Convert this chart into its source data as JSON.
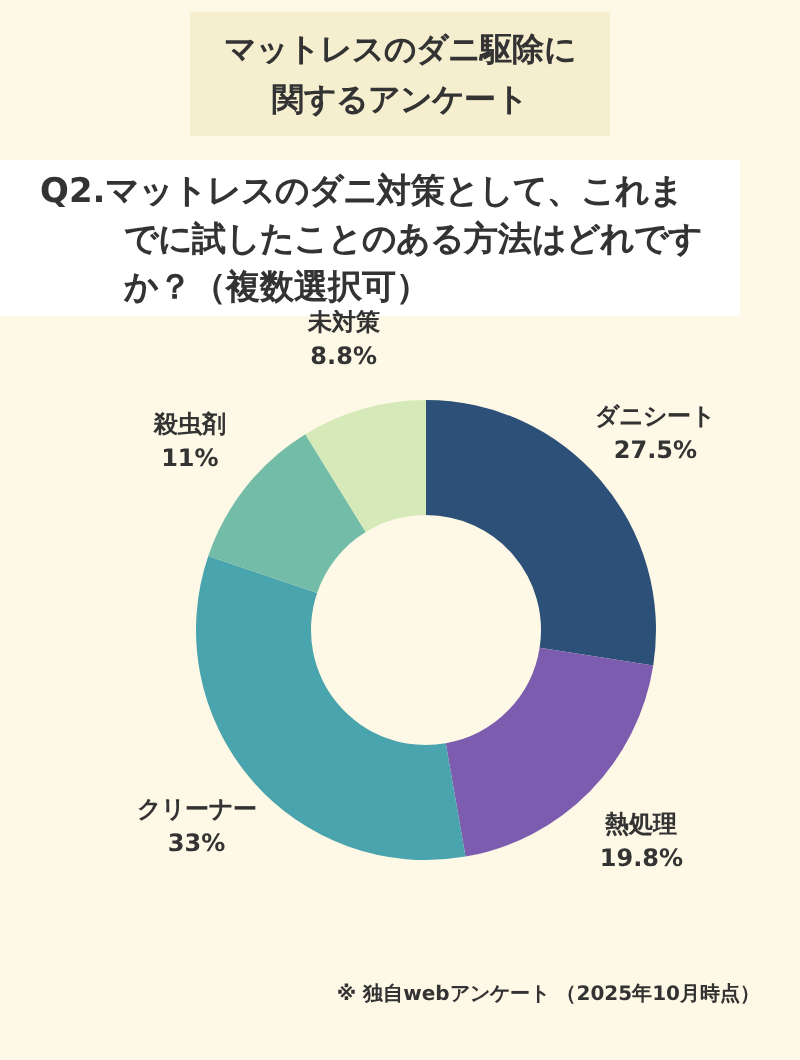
{
  "chart_data": {
    "type": "donut",
    "title": "マットレスのダニ駆除に関するアンケート",
    "subtitle": "Q2.マットレスのダニ対策として、これまでに試したことのある方法はどれですか？（複数選択可）",
    "categories": [
      "ダニシート",
      "熱処理",
      "クリーナー",
      "殺虫剤",
      "未対策"
    ],
    "values": [
      27.5,
      19.8,
      33,
      11,
      8.8
    ],
    "value_labels": [
      "27.5%",
      "19.8%",
      "33%",
      "11%",
      "8.8%"
    ],
    "colors": [
      "#2c5078",
      "#7b5cae",
      "#4aa4ae",
      "#72bca8",
      "#d6e9b9"
    ],
    "legend": false,
    "annotations": [
      "※ 独自webアンケート （2025年10月時点）"
    ]
  }
}
